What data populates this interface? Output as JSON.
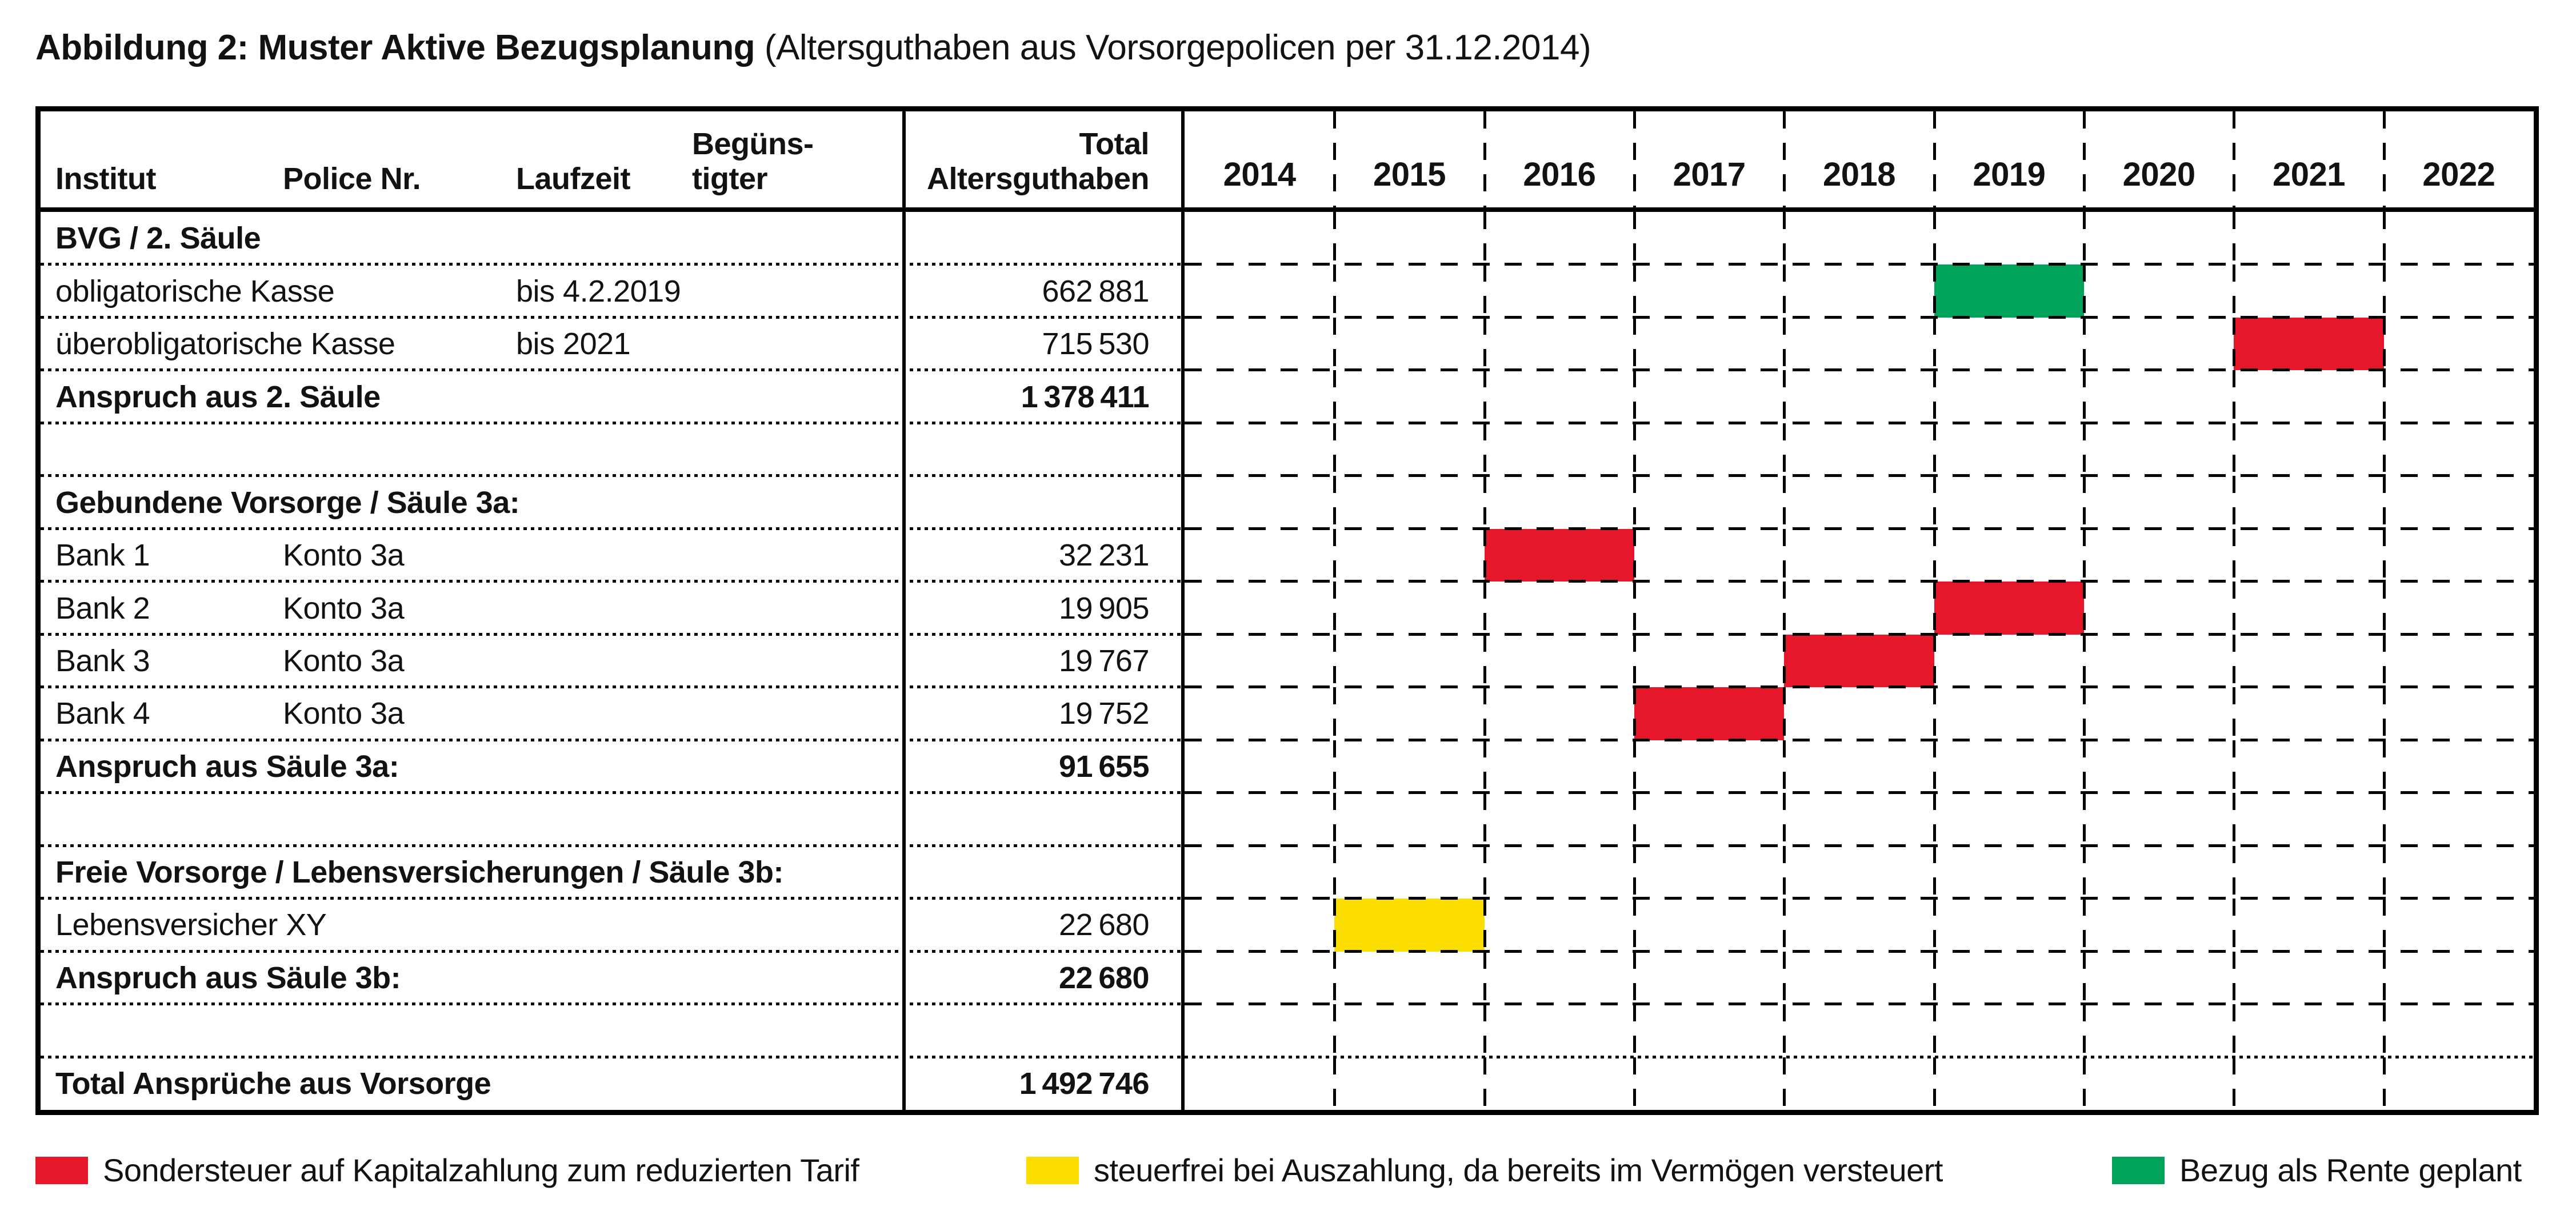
{
  "title": {
    "bold": "Abbildung 2: Muster Aktive Bezugsplanung",
    "caption": " (Altersguthaben aus Vorsorgepolicen per 31.12.2014)"
  },
  "colors": {
    "red": "#E6172B",
    "yellow": "#FBDE00",
    "green": "#00A35A",
    "line": "#000000"
  },
  "chart_data": {
    "type": "gantt-table",
    "title": "Muster Aktive Bezugsplanung (Altersguthaben aus Vorsorgepolicen per 31.12.2014)",
    "headers": {
      "institut": "Institut",
      "police": "Police Nr.",
      "laufzeit": "Laufzeit",
      "beguenstigter": [
        "Begüns-",
        "tigter"
      ],
      "total": [
        "Total",
        "Altersguthaben"
      ]
    },
    "years": [
      "2014",
      "2015",
      "2016",
      "2017",
      "2018",
      "2019",
      "2020",
      "2021",
      "2022"
    ],
    "rows": [
      {
        "kind": "section",
        "institut": "BVG / 2. Säule"
      },
      {
        "kind": "item",
        "institut": "obligatorische Kasse",
        "laufzeit": "bis 4.2.2019",
        "total_display": "662 881",
        "value": 662881,
        "bar": {
          "year": "2019",
          "color": "green"
        }
      },
      {
        "kind": "item",
        "institut": "überobligatorische Kasse",
        "laufzeit": "bis 2021",
        "total_display": "715 530",
        "value": 715530,
        "bar": {
          "year": "2021",
          "color": "red"
        }
      },
      {
        "kind": "subtotal",
        "institut": "Anspruch aus 2. Säule",
        "total_display": "1 378 411",
        "value": 1378411
      },
      {
        "kind": "empty"
      },
      {
        "kind": "section",
        "institut": "Gebundene Vorsorge / Säule 3a:"
      },
      {
        "kind": "item",
        "institut": "Bank 1",
        "police": "Konto 3a",
        "total_display": "32 231",
        "value": 32231,
        "bar": {
          "year": "2016",
          "color": "red"
        }
      },
      {
        "kind": "item",
        "institut": "Bank 2",
        "police": "Konto 3a",
        "total_display": "19 905",
        "value": 19905,
        "bar": {
          "year": "2019",
          "color": "red"
        }
      },
      {
        "kind": "item",
        "institut": "Bank 3",
        "police": "Konto 3a",
        "total_display": "19 767",
        "value": 19767,
        "bar": {
          "year": "2018",
          "color": "red"
        }
      },
      {
        "kind": "item",
        "institut": "Bank 4",
        "police": "Konto 3a",
        "total_display": "19 752",
        "value": 19752,
        "bar": {
          "year": "2017",
          "color": "red"
        }
      },
      {
        "kind": "subtotal",
        "institut": "Anspruch aus Säule 3a:",
        "total_display": "91 655",
        "value": 91655
      },
      {
        "kind": "empty"
      },
      {
        "kind": "section",
        "institut": "Freie Vorsorge / Lebensversicherungen / Säule 3b:"
      },
      {
        "kind": "item",
        "institut": "Lebensversicher XY",
        "total_display": "22 680",
        "value": 22680,
        "bar": {
          "year": "2015",
          "color": "yellow"
        }
      },
      {
        "kind": "subtotal",
        "institut": "Anspruch aus Säule 3b:",
        "total_display": "22 680",
        "value": 22680
      },
      {
        "kind": "empty"
      },
      {
        "kind": "total",
        "institut": "Total Ansprüche aus Vorsorge",
        "total_display": "1 492 746",
        "value": 1492746
      }
    ],
    "legend": [
      {
        "color": "red",
        "label": "Sondersteuer auf Kapitalzahlung zum reduzierten Tarif"
      },
      {
        "color": "yellow",
        "label": "steuerfrei bei Auszahlung, da bereits im Vermögen versteuert"
      },
      {
        "color": "green",
        "label": "Bezug als Rente geplant"
      }
    ],
    "layout": {
      "grid": "dashed-vertical-year-dividers, dotted-row-dividers",
      "legend_position": "below-table"
    }
  }
}
